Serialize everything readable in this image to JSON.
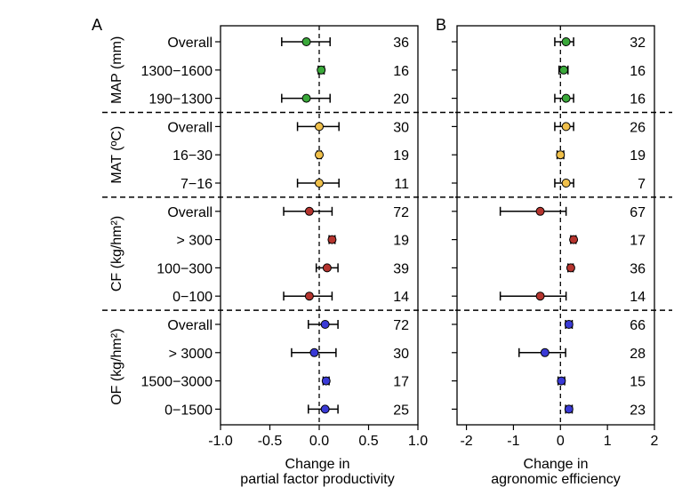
{
  "chart_data": [
    {
      "type": "forest",
      "panel_label": "A",
      "xlabel_lines": [
        "Change in",
        "partial factor productivity"
      ],
      "xlim": [
        -1.0,
        1.0
      ],
      "xticks": [
        -1.0,
        -0.5,
        0.0,
        0.5,
        1.0
      ],
      "xtick_labels": [
        "-1.0",
        "-0.5",
        "0.0",
        "0.5",
        "1.0"
      ],
      "groups": [
        {
          "name": "MAP (mm)",
          "color": "#3aa83a",
          "rows": [
            {
              "label": "Overall",
              "mean": -0.13,
              "lo": -0.38,
              "hi": 0.11,
              "n": "36"
            },
            {
              "label": "1300−1600",
              "mean": 0.02,
              "lo": -0.01,
              "hi": 0.05,
              "n": "16"
            },
            {
              "label": "190−1300",
              "mean": -0.13,
              "lo": -0.38,
              "hi": 0.11,
              "n": "20"
            }
          ]
        },
        {
          "name": "MAT (ºC)",
          "color": "#f0c04a",
          "rows": [
            {
              "label": "Overall",
              "mean": 0.0,
              "lo": -0.22,
              "hi": 0.2,
              "n": "30"
            },
            {
              "label": "16−30",
              "mean": 0.0,
              "lo": -0.02,
              "hi": 0.02,
              "n": "19"
            },
            {
              "label": "7−16",
              "mean": 0.0,
              "lo": -0.22,
              "hi": 0.2,
              "n": "11"
            }
          ]
        },
        {
          "name": "CF (kg/hm²)",
          "color": "#b5342e",
          "rows": [
            {
              "label": "Overall",
              "mean": -0.1,
              "lo": -0.36,
              "hi": 0.13,
              "n": "72"
            },
            {
              "label": "> 300",
              "mean": 0.13,
              "lo": 0.1,
              "hi": 0.16,
              "n": "19"
            },
            {
              "label": "100−300",
              "mean": 0.08,
              "lo": -0.03,
              "hi": 0.19,
              "n": "39"
            },
            {
              "label": "0−100",
              "mean": -0.1,
              "lo": -0.36,
              "hi": 0.13,
              "n": "14"
            }
          ]
        },
        {
          "name": "OF (kg/hm²)",
          "color": "#3a3ad6",
          "rows": [
            {
              "label": "Overall",
              "mean": 0.06,
              "lo": -0.11,
              "hi": 0.19,
              "n": "72"
            },
            {
              "label": "> 3000",
              "mean": -0.05,
              "lo": -0.28,
              "hi": 0.17,
              "n": "30"
            },
            {
              "label": "1500−3000",
              "mean": 0.07,
              "lo": 0.04,
              "hi": 0.1,
              "n": "17"
            },
            {
              "label": "0−1500",
              "mean": 0.06,
              "lo": -0.11,
              "hi": 0.19,
              "n": "25"
            }
          ]
        }
      ]
    },
    {
      "type": "forest",
      "panel_label": "B",
      "xlabel_lines": [
        "Change in",
        "agronomic efficiency"
      ],
      "xlim": [
        -2.2,
        2.0
      ],
      "xticks": [
        -2,
        -1,
        0,
        1,
        2
      ],
      "xtick_labels": [
        "-2",
        "-1",
        "0",
        "1",
        "2"
      ],
      "groups": [
        {
          "name": "MAP (mm)",
          "color": "#3aa83a",
          "rows": [
            {
              "label": "Overall",
              "mean": 0.12,
              "lo": -0.12,
              "hi": 0.28,
              "n": "32"
            },
            {
              "label": "1300−1600",
              "mean": 0.07,
              "lo": -0.03,
              "hi": 0.16,
              "n": "16"
            },
            {
              "label": "190−1300",
              "mean": 0.12,
              "lo": -0.12,
              "hi": 0.28,
              "n": "16"
            }
          ]
        },
        {
          "name": "MAT (ºC)",
          "color": "#f0c04a",
          "rows": [
            {
              "label": "Overall",
              "mean": 0.12,
              "lo": -0.12,
              "hi": 0.28,
              "n": "26"
            },
            {
              "label": "16−30",
              "mean": 0.0,
              "lo": -0.07,
              "hi": 0.07,
              "n": "19"
            },
            {
              "label": "7−16",
              "mean": 0.12,
              "lo": -0.12,
              "hi": 0.28,
              "n": "7"
            }
          ]
        },
        {
          "name": "CF (kg/hm²)",
          "color": "#b5342e",
          "rows": [
            {
              "label": "Overall",
              "mean": -0.43,
              "lo": -1.28,
              "hi": 0.12,
              "n": "67"
            },
            {
              "label": "> 300",
              "mean": 0.28,
              "lo": 0.22,
              "hi": 0.33,
              "n": "17"
            },
            {
              "label": "100−300",
              "mean": 0.22,
              "lo": 0.16,
              "hi": 0.27,
              "n": "36"
            },
            {
              "label": "0−100",
              "mean": -0.43,
              "lo": -1.28,
              "hi": 0.12,
              "n": "14"
            }
          ]
        },
        {
          "name": "OF (kg/hm²)",
          "color": "#3a3ad6",
          "rows": [
            {
              "label": "Overall",
              "mean": 0.18,
              "lo": 0.11,
              "hi": 0.25,
              "n": "66"
            },
            {
              "label": "> 3000",
              "mean": -0.33,
              "lo": -0.88,
              "hi": 0.11,
              "n": "28"
            },
            {
              "label": "1500−3000",
              "mean": 0.02,
              "lo": -0.05,
              "hi": 0.09,
              "n": "15"
            },
            {
              "label": "0−1500",
              "mean": 0.18,
              "lo": 0.11,
              "hi": 0.25,
              "n": "23"
            }
          ]
        }
      ]
    }
  ]
}
